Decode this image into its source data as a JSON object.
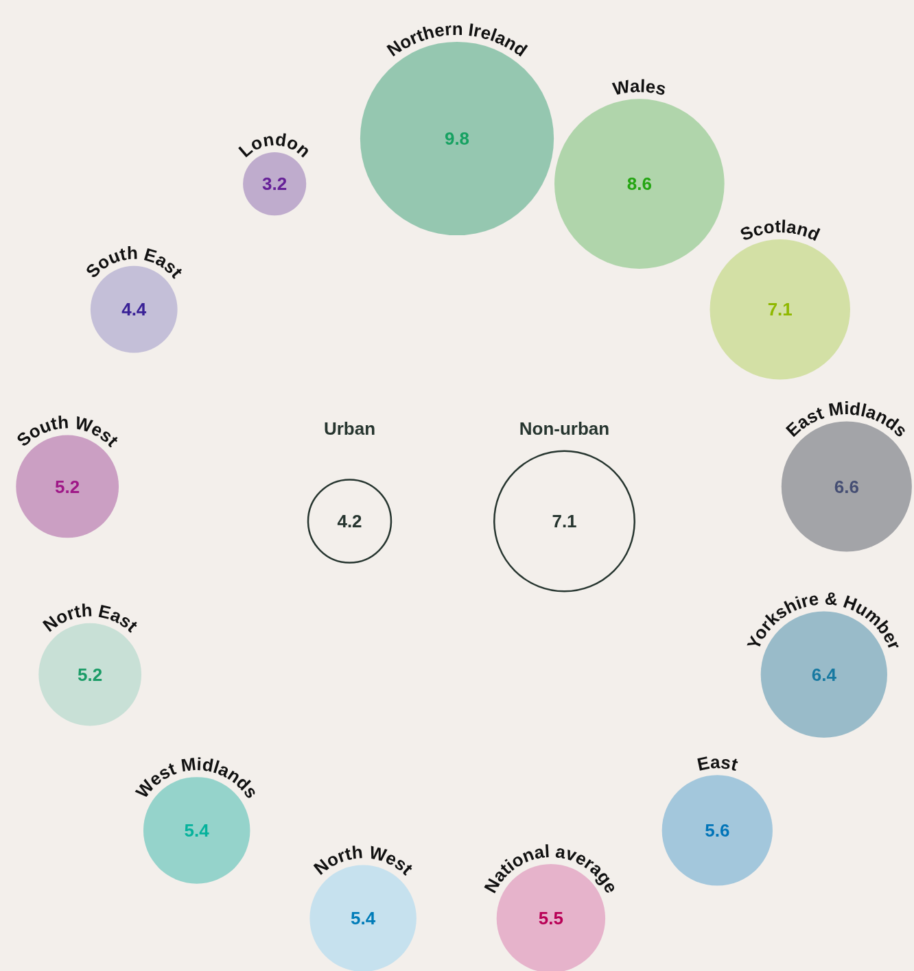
{
  "chart_data": {
    "type": "other",
    "categories": [
      "Northern Ireland",
      "Wales",
      "Scotland",
      "East Midlands",
      "Yorkshire & Humber",
      "East",
      "National average",
      "North West",
      "West Midlands",
      "North East",
      "South West",
      "South East",
      "London",
      "Urban",
      "Non-urban"
    ],
    "values": [
      9.8,
      8.6,
      7.1,
      6.6,
      6.4,
      5.6,
      5.5,
      5.4,
      5.4,
      5.2,
      5.2,
      4.4,
      3.2,
      4.2,
      7.1
    ],
    "colors": [
      "#95c7b0",
      "#b0d5ab",
      "#d3e0a5",
      "#a3a4a8",
      "#99bbc9",
      "#a3c7dc",
      "#e6b3cb",
      "#c6e1ee",
      "#95d3cb",
      "#c8e0d6",
      "#cb9fc3",
      "#c4bfd8",
      "#bfaccd",
      null,
      null
    ],
    "data_labels": true
  }
}
